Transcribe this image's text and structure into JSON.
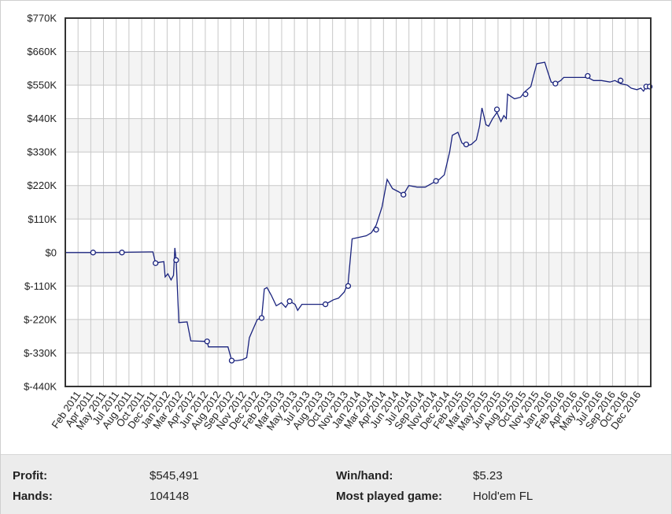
{
  "chart_data": {
    "type": "line",
    "title": "",
    "xlabel": "",
    "ylabel": "",
    "ylim": [
      -440000,
      770000
    ],
    "y_ticks": [
      770000,
      660000,
      550000,
      440000,
      330000,
      220000,
      110000,
      0,
      -110000,
      -220000,
      -330000,
      -440000
    ],
    "y_tick_labels": [
      "$770K",
      "$660K",
      "$550K",
      "$440K",
      "$330K",
      "$220K",
      "$110K",
      "$0",
      "$-110K",
      "$-220K",
      "$-330K",
      "$-440K"
    ],
    "x_range": [
      "2011-01",
      "2017-01"
    ],
    "x_tick_labels": [
      "Feb 2011",
      "Apr 2011",
      "May 2011",
      "Jul 2011",
      "Aug 2011",
      "Oct 2011",
      "Dec 2011",
      "Jan 2012",
      "Mar 2012",
      "Apr 2012",
      "Jun 2012",
      "Aug 2012",
      "Sep 2012",
      "Nov 2012",
      "Dec 2012",
      "Feb 2013",
      "Mar 2013",
      "May 2013",
      "Jul 2013",
      "Aug 2013",
      "Oct 2013",
      "Nov 2013",
      "Jan 2014",
      "Mar 2014",
      "Apr 2014",
      "Jun 2014",
      "Jul 2014",
      "Sep 2014",
      "Nov 2014",
      "Dec 2014",
      "Feb 2015",
      "Mar 2015",
      "May 2015",
      "Jun 2015",
      "Aug 2015",
      "Oct 2015",
      "Nov 2015",
      "Jan 2016",
      "Feb 2016",
      "Apr 2016",
      "May 2016",
      "Jul 2016",
      "Sep 2016",
      "Oct 2016",
      "Dec 2016"
    ],
    "grid": true,
    "legend": "none",
    "line_color": "#1a237e",
    "series": [
      {
        "values": [
          [
            "2011-01-01",
            0
          ],
          [
            "2011-06-01",
            0
          ],
          [
            "2011-11-10",
            2000
          ],
          [
            "2011-11-25",
            2000
          ],
          [
            "2011-12-05",
            -35000
          ],
          [
            "2011-12-20",
            -32000
          ],
          [
            "2012-01-05",
            -30000
          ],
          [
            "2012-01-10",
            -80000
          ],
          [
            "2012-01-20",
            -70000
          ],
          [
            "2012-02-01",
            -90000
          ],
          [
            "2012-02-10",
            -75000
          ],
          [
            "2012-02-15",
            15000
          ],
          [
            "2012-02-20",
            -25000
          ],
          [
            "2012-03-01",
            -230000
          ],
          [
            "2012-04-01",
            -228000
          ],
          [
            "2012-04-15",
            -290000
          ],
          [
            "2012-06-15",
            -292000
          ],
          [
            "2012-06-20",
            -310000
          ],
          [
            "2012-09-01",
            -310000
          ],
          [
            "2012-09-15",
            -355000
          ],
          [
            "2012-10-05",
            -355000
          ],
          [
            "2012-10-25",
            -352000
          ],
          [
            "2012-11-10",
            -345000
          ],
          [
            "2012-11-20",
            -280000
          ],
          [
            "2012-12-05",
            -250000
          ],
          [
            "2012-12-20",
            -220000
          ],
          [
            "2013-01-05",
            -215000
          ],
          [
            "2013-01-15",
            -120000
          ],
          [
            "2013-01-25",
            -115000
          ],
          [
            "2013-02-10",
            -140000
          ],
          [
            "2013-03-01",
            -175000
          ],
          [
            "2013-03-20",
            -165000
          ],
          [
            "2013-04-05",
            -180000
          ],
          [
            "2013-04-20",
            -160000
          ],
          [
            "2013-05-10",
            -170000
          ],
          [
            "2013-05-20",
            -190000
          ],
          [
            "2013-06-05",
            -170000
          ],
          [
            "2013-07-01",
            -170000
          ],
          [
            "2013-09-01",
            -170000
          ],
          [
            "2013-10-01",
            -155000
          ],
          [
            "2013-10-20",
            -150000
          ],
          [
            "2013-11-10",
            -130000
          ],
          [
            "2013-11-25",
            -100000
          ],
          [
            "2013-12-10",
            45000
          ],
          [
            "2014-01-05",
            50000
          ],
          [
            "2014-02-01",
            55000
          ],
          [
            "2014-02-20",
            65000
          ],
          [
            "2014-03-10",
            90000
          ],
          [
            "2014-04-01",
            150000
          ],
          [
            "2014-04-20",
            240000
          ],
          [
            "2014-05-10",
            210000
          ],
          [
            "2014-06-01",
            200000
          ],
          [
            "2014-06-20",
            190000
          ],
          [
            "2014-07-10",
            220000
          ],
          [
            "2014-08-10",
            215000
          ],
          [
            "2014-09-10",
            215000
          ],
          [
            "2014-10-10",
            230000
          ],
          [
            "2014-11-01",
            240000
          ],
          [
            "2014-11-20",
            255000
          ],
          [
            "2014-12-10",
            330000
          ],
          [
            "2014-12-20",
            385000
          ],
          [
            "2015-01-10",
            395000
          ],
          [
            "2015-01-25",
            360000
          ],
          [
            "2015-02-10",
            350000
          ],
          [
            "2015-03-01",
            355000
          ],
          [
            "2015-03-20",
            370000
          ],
          [
            "2015-04-01",
            415000
          ],
          [
            "2015-04-10",
            475000
          ],
          [
            "2015-04-25",
            420000
          ],
          [
            "2015-05-05",
            415000
          ],
          [
            "2015-05-20",
            440000
          ],
          [
            "2015-06-05",
            460000
          ],
          [
            "2015-06-20",
            430000
          ],
          [
            "2015-07-01",
            450000
          ],
          [
            "2015-07-10",
            440000
          ],
          [
            "2015-07-15",
            520000
          ],
          [
            "2015-08-10",
            505000
          ],
          [
            "2015-09-01",
            510000
          ],
          [
            "2015-09-20",
            530000
          ],
          [
            "2015-10-10",
            545000
          ],
          [
            "2015-10-20",
            580000
          ],
          [
            "2015-11-01",
            620000
          ],
          [
            "2015-12-01",
            625000
          ],
          [
            "2015-12-10",
            600000
          ],
          [
            "2015-12-25",
            560000
          ],
          [
            "2016-01-10",
            555000
          ],
          [
            "2016-01-30",
            565000
          ],
          [
            "2016-02-10",
            575000
          ],
          [
            "2016-03-01",
            575000
          ],
          [
            "2016-05-10",
            575000
          ],
          [
            "2016-06-01",
            565000
          ],
          [
            "2016-07-01",
            565000
          ],
          [
            "2016-08-01",
            560000
          ],
          [
            "2016-08-20",
            565000
          ],
          [
            "2016-09-10",
            555000
          ],
          [
            "2016-10-05",
            550000
          ],
          [
            "2016-10-20",
            540000
          ],
          [
            "2016-11-10",
            535000
          ],
          [
            "2016-11-25",
            540000
          ],
          [
            "2016-12-05",
            530000
          ],
          [
            "2016-12-15",
            545000
          ],
          [
            "2017-01-01",
            545000
          ]
        ]
      }
    ],
    "markers": [
      [
        "2011-04-15",
        0
      ],
      [
        "2011-08-01",
        0
      ],
      [
        "2011-12-05",
        -35000
      ],
      [
        "2012-02-20",
        -25000
      ],
      [
        "2012-06-15",
        -292000
      ],
      [
        "2012-09-15",
        -355000
      ],
      [
        "2013-01-05",
        -215000
      ],
      [
        "2013-04-20",
        -160000
      ],
      [
        "2013-09-01",
        -170000
      ],
      [
        "2013-11-25",
        -110000
      ],
      [
        "2014-03-10",
        75000
      ],
      [
        "2014-06-20",
        190000
      ],
      [
        "2014-10-20",
        235000
      ],
      [
        "2015-02-10",
        355000
      ],
      [
        "2015-06-05",
        470000
      ],
      [
        "2015-09-20",
        520000
      ],
      [
        "2016-01-10",
        555000
      ],
      [
        "2016-05-10",
        580000
      ],
      [
        "2016-09-10",
        565000
      ],
      [
        "2016-12-15",
        545000
      ],
      [
        "2016-12-28",
        545000
      ]
    ]
  },
  "stats": {
    "profit_label": "Profit:",
    "profit_value": "$545,491",
    "hands_label": "Hands:",
    "hands_value": "104148",
    "winhand_label": "Win/hand:",
    "winhand_value": "$5.23",
    "game_label": "Most played game:",
    "game_value": "Hold'em FL"
  }
}
